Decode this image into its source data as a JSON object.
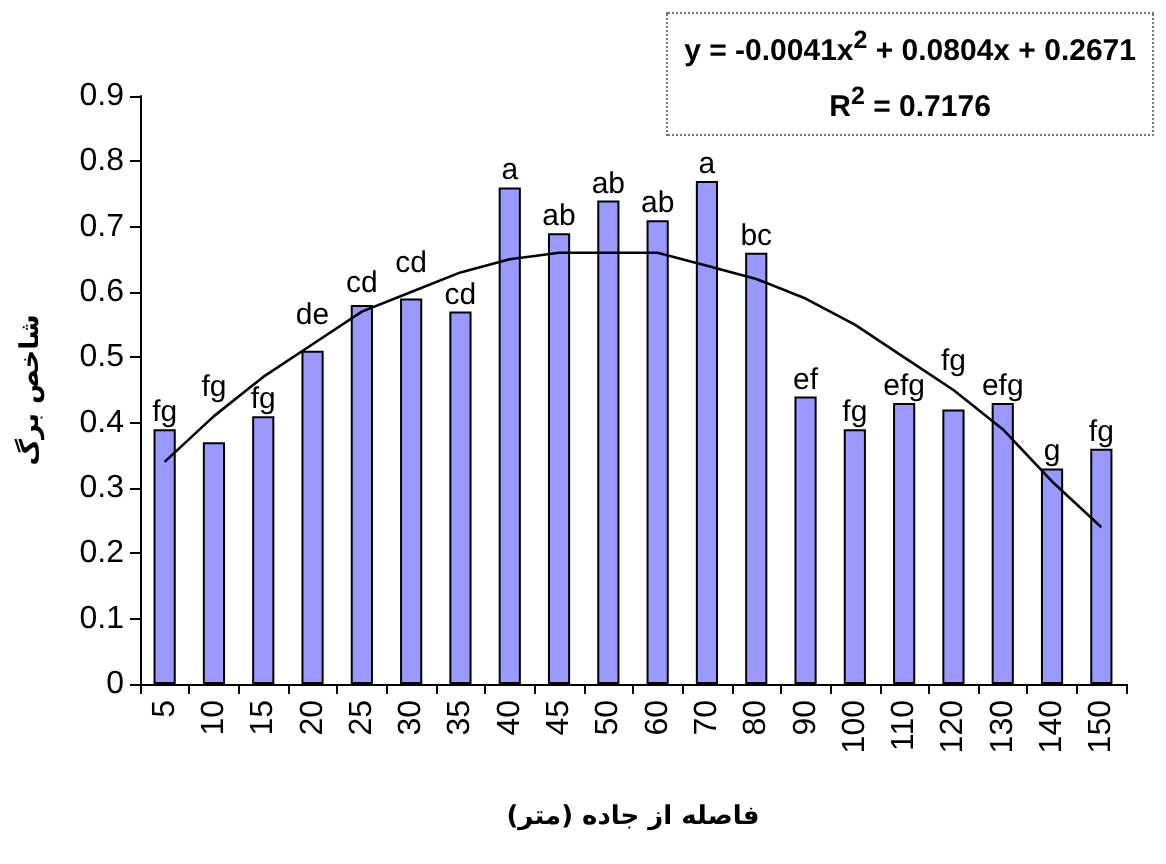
{
  "chart_data": {
    "type": "bar",
    "xlabel": "فاصله از جاده (متر)",
    "ylabel": "شاخص برگ",
    "categories": [
      "5",
      "10",
      "15",
      "20",
      "25",
      "30",
      "35",
      "40",
      "45",
      "50",
      "60",
      "70",
      "80",
      "90",
      "100",
      "110",
      "120",
      "130",
      "140",
      "150"
    ],
    "series": [
      {
        "color": "#9999ff",
        "values": [
          0.39,
          0.37,
          0.41,
          0.51,
          0.58,
          0.59,
          0.57,
          0.76,
          0.69,
          0.74,
          0.71,
          0.77,
          0.66,
          0.44,
          0.39,
          0.43,
          0.42,
          0.43,
          0.33,
          0.36
        ],
        "value_labels": [
          "fg",
          "fg",
          "fg",
          "de",
          "cd",
          "cd",
          "cd",
          "a",
          "ab",
          "ab",
          "ab",
          "a",
          "bc",
          "ef",
          "fg",
          "efg",
          "fg",
          "efg",
          "g",
          "fg"
        ]
      },
      {
        "type": "line",
        "color": "#000000",
        "marker": "none",
        "x": [
          "5",
          "10",
          "15",
          "20",
          "25",
          "30",
          "35",
          "40",
          "45",
          "50",
          "60",
          "70",
          "80",
          "90",
          "100",
          "110",
          "120",
          "130",
          "140",
          "150"
        ],
        "values": [
          0.34,
          0.41,
          0.47,
          0.52,
          0.57,
          0.6,
          0.63,
          0.65,
          0.66,
          0.66,
          0.66,
          0.64,
          0.62,
          0.59,
          0.55,
          0.5,
          0.45,
          0.39,
          0.31,
          0.24
        ]
      }
    ],
    "ylim": [
      0,
      0.9
    ],
    "yticks": [
      0,
      0.1,
      0.2,
      0.3,
      0.4,
      0.5,
      0.6,
      0.7,
      0.8,
      0.9
    ],
    "grid": false,
    "annotations": [
      "y = -0.0041x$^{2}$ + 0.0804x + 0.2671",
      "R$^{2}$ = 0.7176"
    ]
  }
}
